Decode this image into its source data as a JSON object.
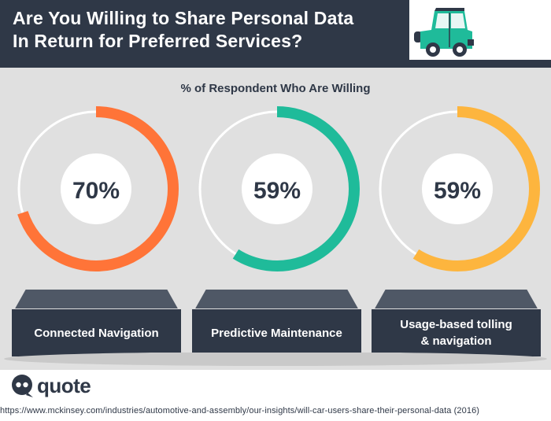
{
  "header": {
    "title_line1": "Are You Willing to Share Personal Data",
    "title_line2": "In Return for Preferred Services?"
  },
  "chart_data": {
    "type": "pie",
    "title": "% of Respondent Who Are Willing",
    "unit": "%",
    "categories": [
      "Connected Navigation",
      "Predictive Maintenance",
      "Usage-based tolling\n& navigation"
    ],
    "values": [
      70,
      59,
      59
    ],
    "labels": [
      "70%",
      "59%",
      "59%"
    ],
    "colors": [
      "#ff7438",
      "#1fbb9a",
      "#fdb53e"
    ],
    "track_color": "#ffffff"
  },
  "brand": {
    "logo_text": "quote"
  },
  "source": "https://www.mckinsey.com/industries/automotive-and-assembly/our-insights/will-car-users-share-their-personal-data (2016)",
  "colors": {
    "navy": "#2f3847",
    "panel": "#e0e0e0",
    "car_body": "#1fbb9a"
  },
  "icons": [
    "car-icon",
    "quote-logo-icon"
  ]
}
